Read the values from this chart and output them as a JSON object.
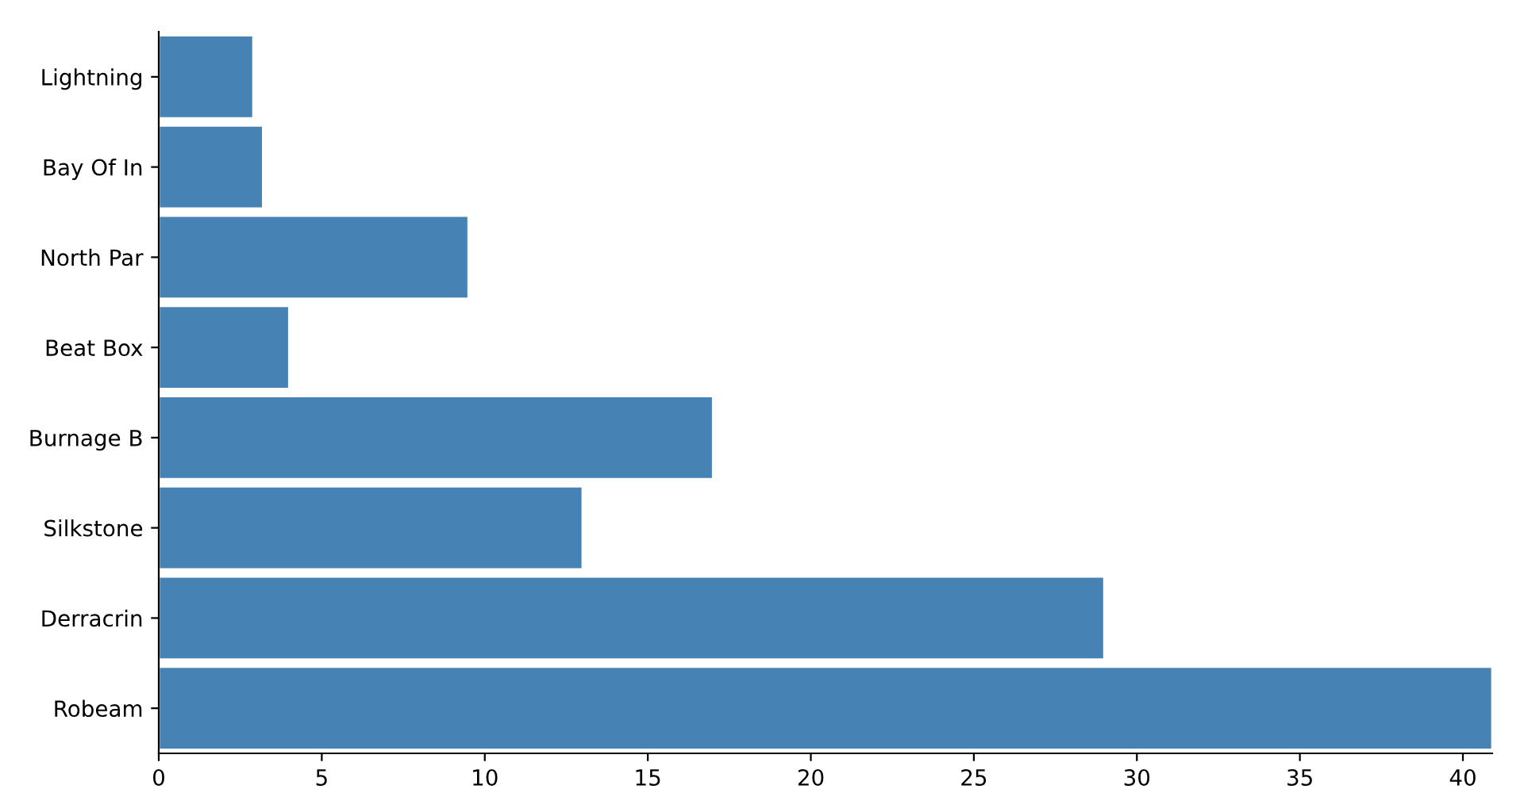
{
  "chart_data": {
    "type": "bar",
    "orientation": "horizontal",
    "categories": [
      "Lightning",
      "Bay Of In",
      "North Par",
      "Beat Box",
      "Burnage B",
      "Silkstone",
      "Derracrin",
      "Robeam"
    ],
    "values": [
      2.9,
      3.2,
      9.5,
      4.0,
      17,
      13,
      29,
      40.9
    ],
    "color": "#4682b4",
    "xlim": [
      0,
      40.9
    ],
    "xticks": [
      0,
      5,
      10,
      15,
      20,
      25,
      30,
      35,
      40
    ],
    "grid": false,
    "legend": false
  }
}
